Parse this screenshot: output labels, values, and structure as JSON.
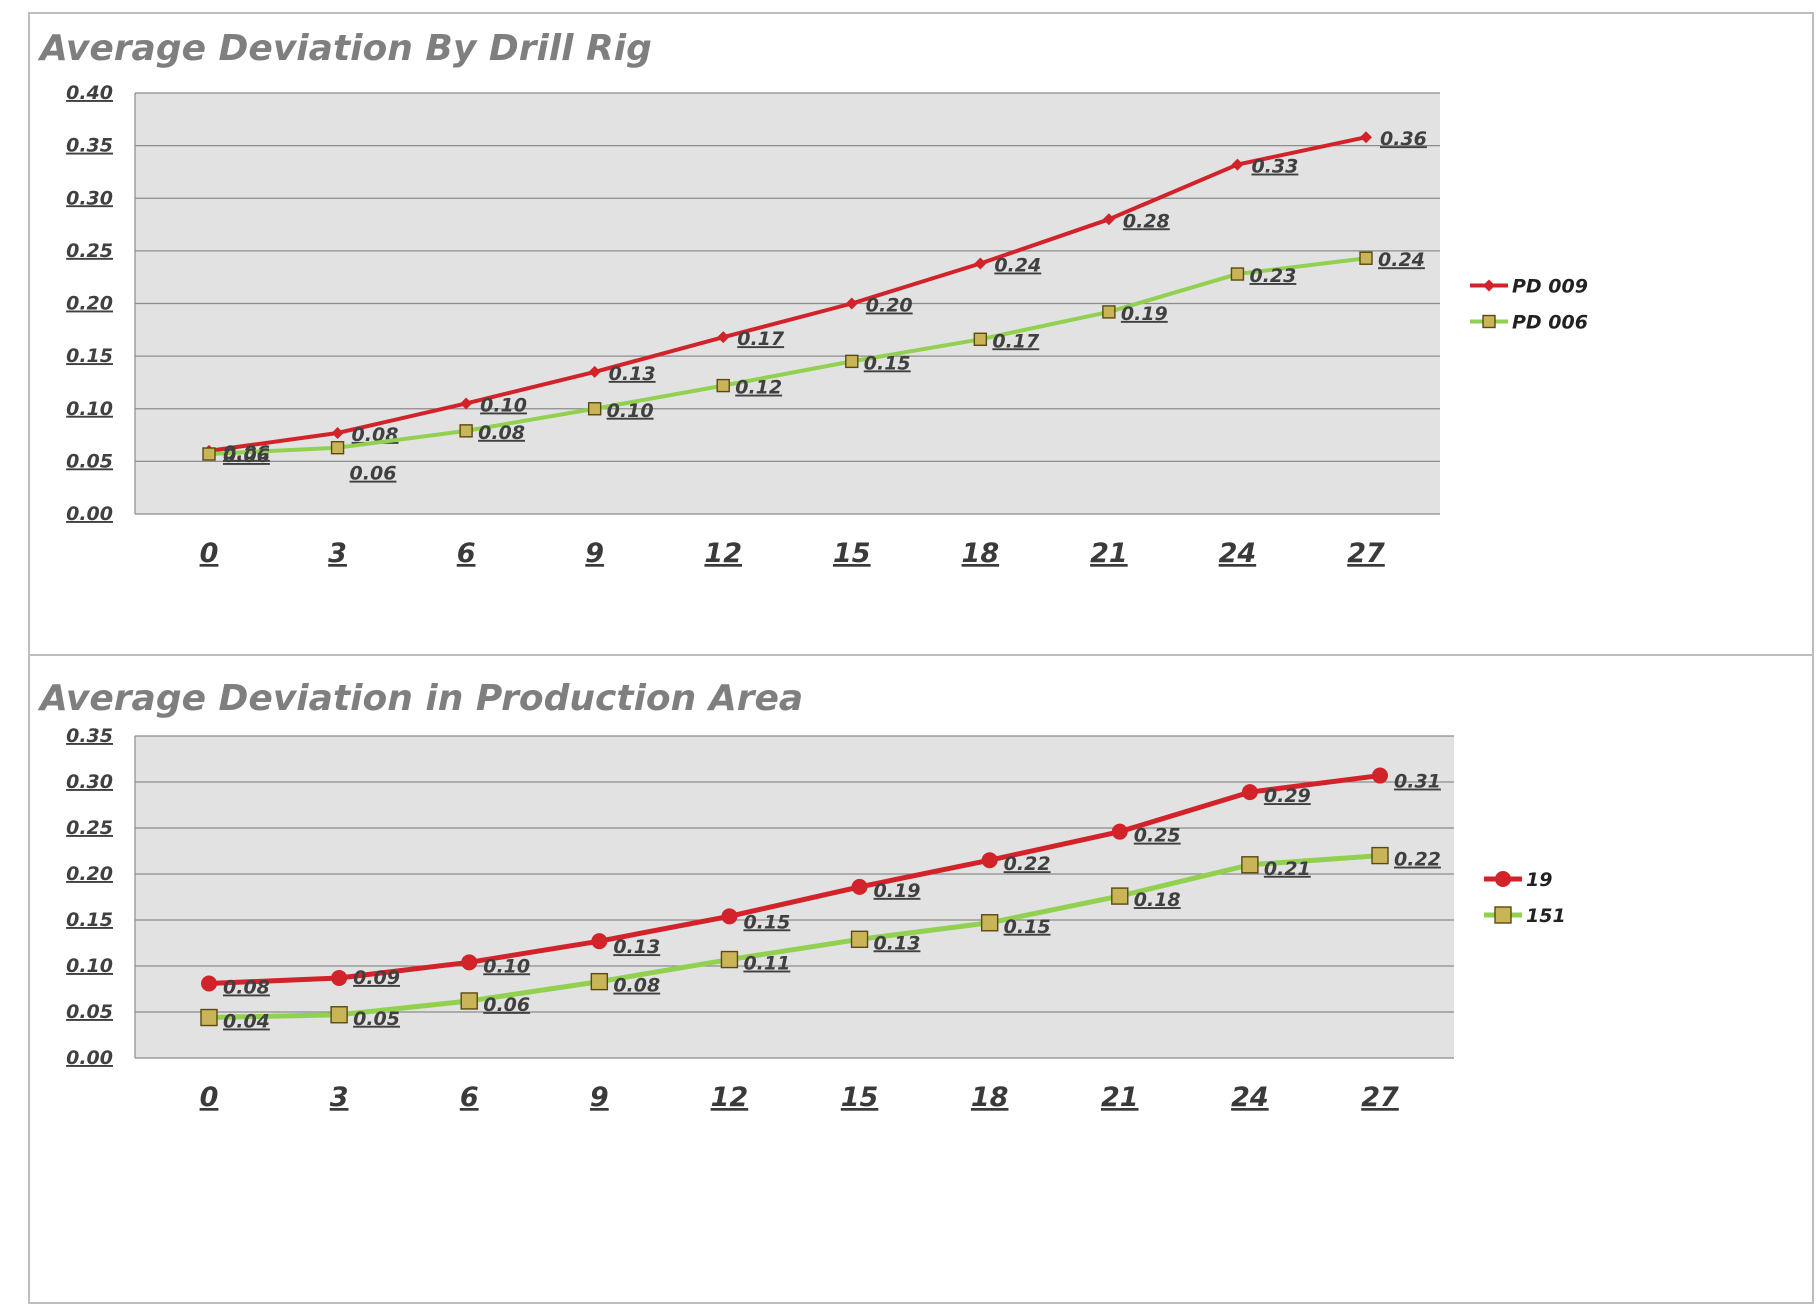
{
  "colors": {
    "series_red": "#d2232a",
    "series_green": "#92d050",
    "marker_fill": "#c9b458",
    "plot_bg": "#e2e2e2",
    "grid": "#8c8c8c",
    "title": "#7f7f7f"
  },
  "chart_data": [
    {
      "type": "line",
      "title": "Average Deviation By Drill Rig",
      "xlabel": "",
      "ylabel": "",
      "categories": [
        "0",
        "3",
        "6",
        "9",
        "12",
        "15",
        "18",
        "21",
        "24",
        "27"
      ],
      "x": [
        0,
        3,
        6,
        9,
        12,
        15,
        18,
        21,
        24,
        27
      ],
      "ylim": [
        0,
        0.4
      ],
      "yticks": [
        "0.00",
        "0.05",
        "0.10",
        "0.15",
        "0.20",
        "0.25",
        "0.30",
        "0.35",
        "0.40"
      ],
      "grid": true,
      "legend_position": "right",
      "series": [
        {
          "name": "PD 009",
          "color": "#d2232a",
          "marker": "diamond",
          "values": [
            0.06,
            0.077,
            0.105,
            0.135,
            0.168,
            0.2,
            0.238,
            0.28,
            0.332,
            0.358
          ],
          "labels": [
            "0.06",
            "0.08",
            "0.10",
            "0.13",
            "0.17",
            "0.20",
            "0.24",
            "0.28",
            "0.33",
            "0.36"
          ]
        },
        {
          "name": "PD 006",
          "color": "#92d050",
          "marker": "square",
          "values": [
            0.057,
            0.063,
            0.079,
            0.1,
            0.122,
            0.145,
            0.166,
            0.192,
            0.228,
            0.243
          ],
          "labels": [
            "0.06",
            "0.06",
            "0.08",
            "0.10",
            "0.12",
            "0.15",
            "0.17",
            "0.19",
            "0.23",
            "0.24"
          ]
        }
      ]
    },
    {
      "type": "line",
      "title": "Average Deviation in Production Area",
      "xlabel": "",
      "ylabel": "",
      "categories": [
        "0",
        "3",
        "6",
        "9",
        "12",
        "15",
        "18",
        "21",
        "24",
        "27"
      ],
      "x": [
        0,
        3,
        6,
        9,
        12,
        15,
        18,
        21,
        24,
        27
      ],
      "ylim": [
        0,
        0.35
      ],
      "yticks": [
        "0.00",
        "0.05",
        "0.10",
        "0.15",
        "0.20",
        "0.25",
        "0.30",
        "0.35"
      ],
      "grid": true,
      "legend_position": "right",
      "series": [
        {
          "name": "19",
          "color": "#d2232a",
          "marker": "circle",
          "values": [
            0.081,
            0.087,
            0.104,
            0.127,
            0.154,
            0.186,
            0.215,
            0.246,
            0.289,
            0.307
          ],
          "labels": [
            "0.08",
            "0.09",
            "0.10",
            "0.13",
            "0.15",
            "0.19",
            "0.22",
            "0.25",
            "0.29",
            "0.31"
          ]
        },
        {
          "name": "151",
          "color": "#92d050",
          "marker": "square",
          "values": [
            0.044,
            0.047,
            0.062,
            0.083,
            0.107,
            0.129,
            0.147,
            0.176,
            0.21,
            0.22
          ],
          "labels": [
            "0.04",
            "0.05",
            "0.06",
            "0.08",
            "0.11",
            "0.13",
            "0.15",
            "0.18",
            "0.21",
            "0.22"
          ]
        }
      ]
    }
  ]
}
